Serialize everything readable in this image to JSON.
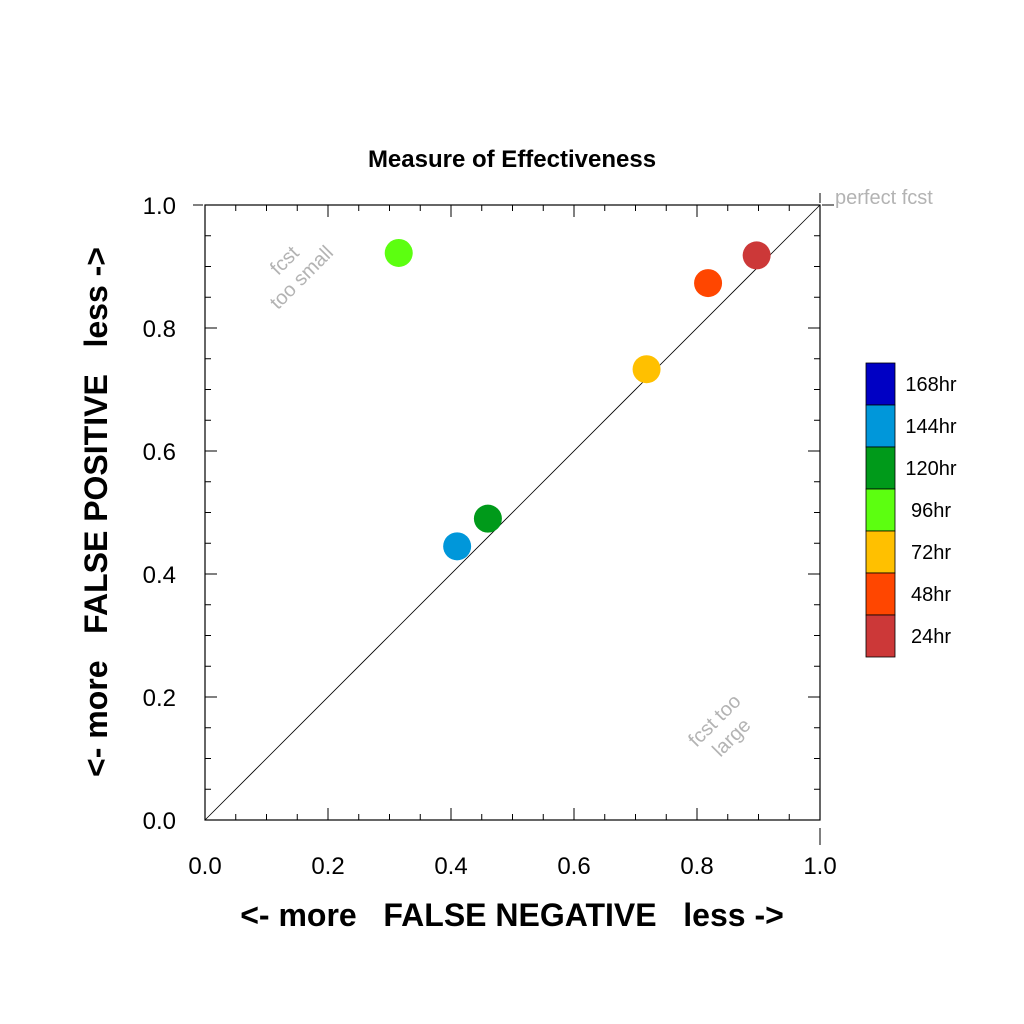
{
  "chart_data": {
    "type": "scatter",
    "title": "Measure of Effectiveness",
    "xlabel": "<- more   FALSE NEGATIVE   less ->",
    "ylabel": "<- more   FALSE POSITIVE   less ->",
    "xlim": [
      0,
      1
    ],
    "ylim": [
      0,
      1
    ],
    "x_ticks": [
      "0.0",
      "0.2",
      "0.4",
      "0.6",
      "0.8",
      "1.0"
    ],
    "y_ticks": [
      "0.0",
      "0.2",
      "0.4",
      "0.6",
      "0.8",
      "1.0"
    ],
    "grid": false,
    "reference_line": "y = x",
    "annotations": {
      "perfect": "perfect fcst",
      "too_small_1": "fcst",
      "too_small_2": "too small",
      "too_large_1": "fcst too",
      "too_large_2": "large"
    },
    "legend": {
      "placement": "right",
      "entries": [
        {
          "label": "168hr",
          "color": "#0000c4"
        },
        {
          "label": "144hr",
          "color": "#0097da"
        },
        {
          "label": "120hr",
          "color": "#009a1a"
        },
        {
          "label": "96hr",
          "color": "#5cff10"
        },
        {
          "label": "72hr",
          "color": "#ffc000"
        },
        {
          "label": "48hr",
          "color": "#ff4600"
        },
        {
          "label": "24hr",
          "color": "#cc3838"
        }
      ]
    },
    "points": [
      {
        "series": "144hr",
        "x": 0.41,
        "y": 0.445,
        "color": "#0097da"
      },
      {
        "series": "120hr",
        "x": 0.46,
        "y": 0.49,
        "color": "#009a1a"
      },
      {
        "series": "96hr",
        "x": 0.315,
        "y": 0.922,
        "color": "#5cff10"
      },
      {
        "series": "72hr",
        "x": 0.718,
        "y": 0.733,
        "color": "#ffc000"
      },
      {
        "series": "48hr",
        "x": 0.818,
        "y": 0.873,
        "color": "#ff4600"
      },
      {
        "series": "24hr",
        "x": 0.897,
        "y": 0.918,
        "color": "#cc3838"
      }
    ]
  }
}
